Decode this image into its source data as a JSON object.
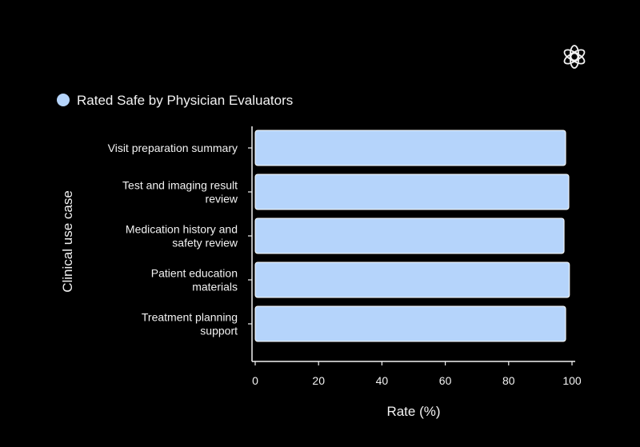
{
  "chart_data": {
    "type": "bar",
    "orientation": "horizontal",
    "categories": [
      [
        "Visit preparation summary"
      ],
      [
        "Test and imaging result",
        "review"
      ],
      [
        "Medication history and",
        "safety review"
      ],
      [
        "Patient education",
        "materials"
      ],
      [
        "Treatment planning",
        "support"
      ]
    ],
    "series": [
      {
        "name": "Rated Safe by Physician Evaluators",
        "values": [
          98,
          99,
          97.5,
          99.2,
          98
        ]
      }
    ],
    "xlabel": "Rate (%)",
    "ylabel": "Clinical use case",
    "xlim": [
      0,
      100
    ],
    "xticks": [
      "0",
      "20",
      "40",
      "60",
      "80",
      "100"
    ],
    "grid": false,
    "legend_position": "top-left",
    "colors": {
      "bar": "#b5d4fb",
      "background": "#000000",
      "text": "#f2f2f2"
    }
  },
  "logo_icon": "openai-logo-icon"
}
